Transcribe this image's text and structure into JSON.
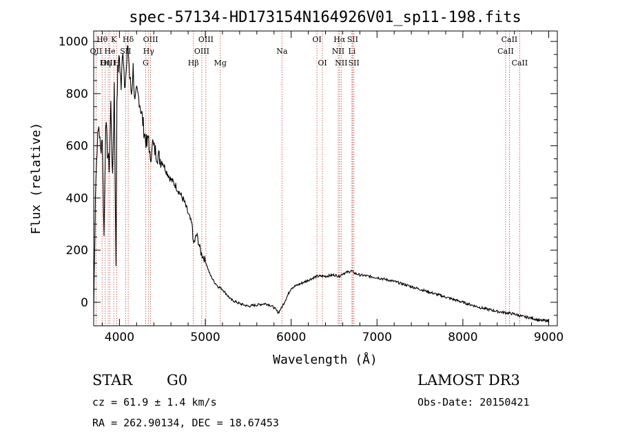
{
  "chart_data": {
    "type": "line",
    "title": "spec-57134-HD173154N164926V01_sp11-198.fits",
    "xlabel": "Wavelength (Å)",
    "ylabel": "Flux (relative)",
    "xlim": [
      3700,
      9100
    ],
    "ylim": [
      -90,
      1040
    ],
    "xticks": [
      4000,
      5000,
      6000,
      7000,
      8000,
      9000
    ],
    "yticks": [
      0,
      200,
      400,
      600,
      800,
      1000
    ],
    "series": [
      {
        "name": "flux",
        "x": [
          3700,
          3720,
          3740,
          3760,
          3780,
          3800,
          3820,
          3840,
          3860,
          3880,
          3900,
          3920,
          3940,
          3960,
          3970,
          3980,
          4000,
          4020,
          4040,
          4060,
          4080,
          4100,
          4120,
          4140,
          4160,
          4180,
          4200,
          4230,
          4260,
          4290,
          4320,
          4340,
          4360,
          4380,
          4400,
          4450,
          4500,
          4550,
          4600,
          4650,
          4700,
          4750,
          4800,
          4850,
          4861,
          4900,
          4950,
          5000,
          5050,
          5100,
          5150,
          5200,
          5250,
          5300,
          5400,
          5500,
          5600,
          5700,
          5750,
          5800,
          5850,
          5890,
          5950,
          6000,
          6100,
          6200,
          6300,
          6400,
          6500,
          6563,
          6600,
          6700,
          6750,
          6800,
          6900,
          7000,
          7200,
          7400,
          7600,
          7800,
          8000,
          8200,
          8400,
          8600,
          8700,
          8800,
          8900,
          9000
        ],
        "y": [
          -40,
          420,
          600,
          680,
          580,
          640,
          250,
          700,
          580,
          520,
          760,
          460,
          840,
          120,
          780,
          880,
          940,
          820,
          980,
          850,
          880,
          990,
          860,
          800,
          900,
          760,
          800,
          780,
          720,
          650,
          600,
          640,
          520,
          620,
          590,
          560,
          540,
          500,
          470,
          450,
          420,
          390,
          340,
          290,
          220,
          260,
          190,
          160,
          110,
          80,
          60,
          50,
          30,
          10,
          -5,
          -15,
          -10,
          -5,
          -10,
          -20,
          -40,
          -20,
          20,
          55,
          70,
          85,
          100,
          100,
          105,
          100,
          110,
          120,
          110,
          105,
          100,
          95,
          80,
          60,
          40,
          20,
          0,
          -20,
          -35,
          -45,
          -55,
          -60,
          -70,
          -70
        ]
      }
    ],
    "line_markers": [
      {
        "label": "Hθ",
        "x": 3798,
        "row": 1
      },
      {
        "label": "OII",
        "x": 3727,
        "row": 2
      },
      {
        "label": "OIII",
        "x": 3869,
        "row": 3
      },
      {
        "label": "He",
        "x": 3889,
        "row": 2
      },
      {
        "label": "Hη",
        "x": 3835,
        "row": 3
      },
      {
        "label": "K",
        "x": 3934,
        "row": 1
      },
      {
        "label": "SII",
        "x": 4072,
        "row": 2
      },
      {
        "label": "H",
        "x": 3969,
        "row": 3
      },
      {
        "label": "Hδ",
        "x": 4102,
        "row": 1
      },
      {
        "label": "OIII",
        "x": 4363,
        "row": 1
      },
      {
        "label": "Hγ",
        "x": 4340,
        "row": 2
      },
      {
        "label": "G",
        "x": 4305,
        "row": 3
      },
      {
        "label": "Hβ",
        "x": 4861,
        "row": 3
      },
      {
        "label": "OIII",
        "x": 4959,
        "row": 2
      },
      {
        "label": "OIII",
        "x": 5007,
        "row": 1
      },
      {
        "label": "Mg",
        "x": 5175,
        "row": 3
      },
      {
        "label": "Na",
        "x": 5893,
        "row": 2
      },
      {
        "label": "OI",
        "x": 6300,
        "row": 1
      },
      {
        "label": "OI",
        "x": 6364,
        "row": 3
      },
      {
        "label": "Hα",
        "x": 6563,
        "row": 1
      },
      {
        "label": "NII",
        "x": 6548,
        "row": 2
      },
      {
        "label": "NII",
        "x": 6583,
        "row": 3
      },
      {
        "label": "SII",
        "x": 6716,
        "row": 1
      },
      {
        "label": "Li",
        "x": 6708,
        "row": 2
      },
      {
        "label": "SII",
        "x": 6731,
        "row": 3
      },
      {
        "label": "CaII",
        "x": 8542,
        "row": 1
      },
      {
        "label": "CaII",
        "x": 8498,
        "row": 2
      },
      {
        "label": "CaII",
        "x": 8662,
        "row": 3
      }
    ]
  },
  "info": {
    "object_class": "STAR",
    "subclass": "G0",
    "survey": "LAMOST DR3",
    "redshift": "cz = 61.9 ± 1.4 km/s",
    "obs_date": "Obs-Date: 20150421",
    "coords": "RA = 262.90134, DEC =  18.67453"
  }
}
